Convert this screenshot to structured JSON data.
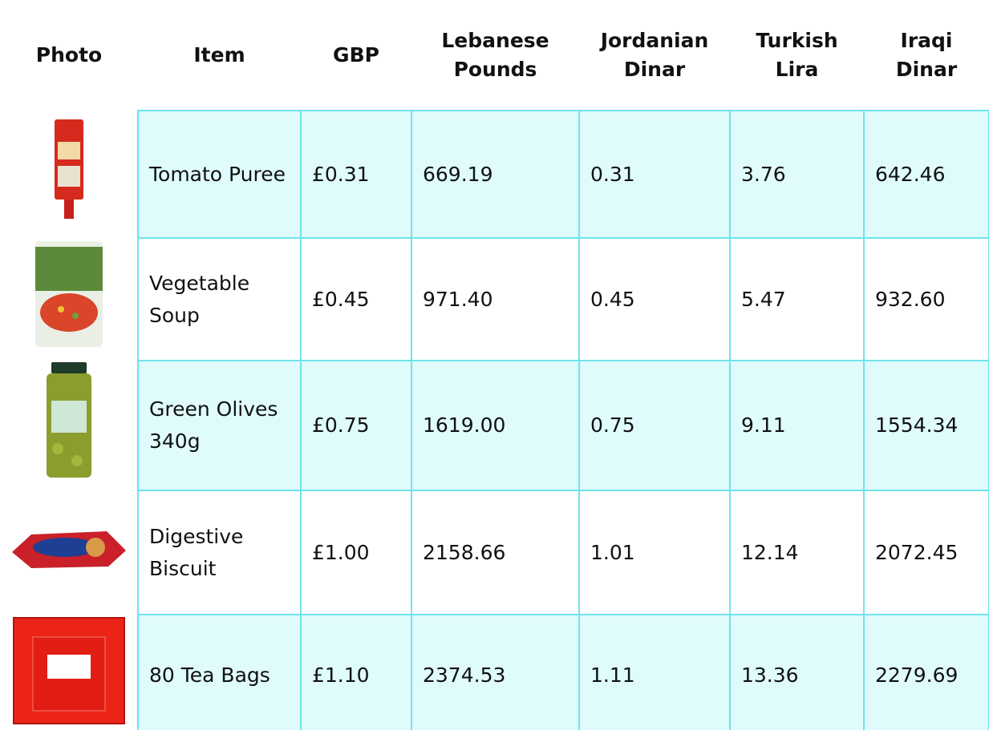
{
  "header": [
    "Photo",
    "Item",
    "GBP",
    "Lebanese Pounds",
    "Jordanian Dinar",
    "Turkish Lira",
    "Iraqi Dinar"
  ],
  "rows": [
    [
      "Tomato Puree",
      "£0.31",
      "669.19",
      "0.31",
      "3.76",
      "642.46"
    ],
    [
      "Vegetable Soup",
      "£0.45",
      "971.40",
      "0.45",
      "5.47",
      "932.60"
    ],
    [
      "Green Olives 340g",
      "£0.75",
      "1619.00",
      "0.75",
      "9.11",
      "1554.34"
    ],
    [
      "Digestive Biscuit",
      "£1.00",
      "2158.66",
      "1.01",
      "12.14",
      "2072.45"
    ],
    [
      "80 Tea Bags",
      "£1.10",
      "2374.53",
      "1.11",
      "13.36",
      "2279.69"
    ]
  ]
}
